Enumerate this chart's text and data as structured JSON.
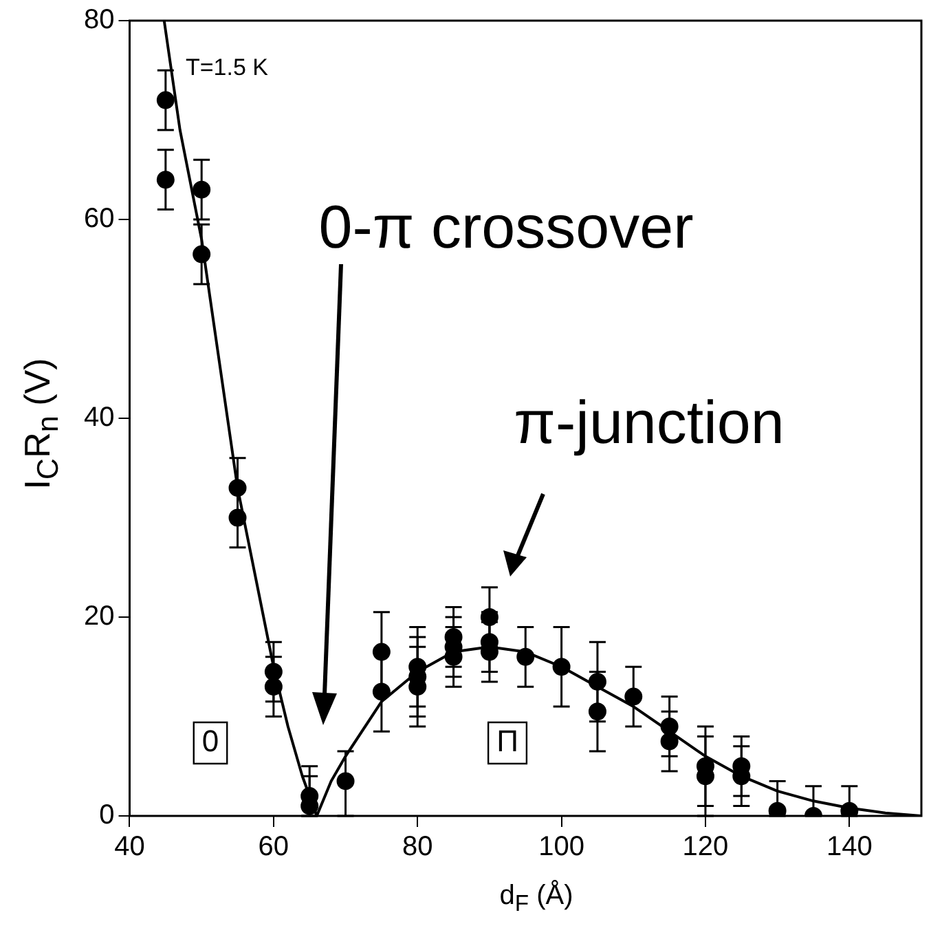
{
  "chart_data": {
    "type": "scatter",
    "xlabel": "d$_{F}$ (Å)",
    "ylabel": "I$_{C}$R$_{n}$ (V)",
    "xlim": [
      40,
      150
    ],
    "xticks": [
      40,
      60,
      80,
      100,
      120,
      140
    ],
    "ylim": [
      0,
      80
    ],
    "yticks": [
      0,
      20,
      40,
      60,
      80
    ],
    "grid": false,
    "legend": false,
    "annotations": [
      "T=1.5 K",
      "0-π crossover",
      "π-junction",
      "0",
      "Π"
    ],
    "series": [
      {
        "color": "#000000",
        "marker": "circle",
        "x": [
          45,
          45,
          50,
          50,
          55,
          55,
          60,
          60,
          65,
          65,
          70,
          75,
          75,
          80,
          80,
          80,
          85,
          85,
          85,
          90,
          90,
          90,
          95,
          100,
          105,
          105,
          110,
          115,
          115,
          120,
          120,
          125,
          125,
          130,
          135,
          140
        ],
        "values": [
          72,
          64,
          63,
          56.5,
          33,
          30,
          14.5,
          13,
          2,
          1,
          3.5,
          16.5,
          12.5,
          15,
          14,
          13,
          18,
          17,
          16,
          20,
          17.5,
          16.5,
          16,
          15,
          13.5,
          10.5,
          12,
          9,
          7.5,
          5,
          4,
          5,
          4,
          0.5,
          0,
          0.5
        ],
        "errors": [
          3,
          3,
          3,
          3,
          3,
          3,
          3,
          3,
          [
            0,
            5
          ],
          [
            0,
            4
          ],
          [
            0,
            6.5
          ],
          4,
          4,
          4,
          4,
          4,
          3,
          3,
          3,
          3,
          3,
          3,
          3,
          4,
          4,
          4,
          3,
          3,
          3,
          4,
          4,
          3,
          3,
          [
            0,
            3.5
          ],
          [
            0,
            3
          ],
          [
            0,
            3
          ]
        ]
      },
      {
        "type": "line",
        "color": "#000000",
        "marker": "none",
        "x": [
          44.8,
          47,
          50,
          55,
          60,
          62,
          64,
          66,
          68,
          70,
          75,
          80,
          85,
          90,
          95,
          100,
          105,
          110,
          115,
          120,
          125,
          130,
          135,
          140,
          145,
          150
        ],
        "values": [
          80,
          69,
          58,
          33,
          15,
          9,
          4,
          0,
          3.5,
          6,
          11.5,
          14.5,
          16.5,
          17,
          16.5,
          15,
          13,
          11,
          8.5,
          6,
          4,
          2.5,
          1.5,
          0.8,
          0.3,
          0
        ]
      }
    ]
  }
}
